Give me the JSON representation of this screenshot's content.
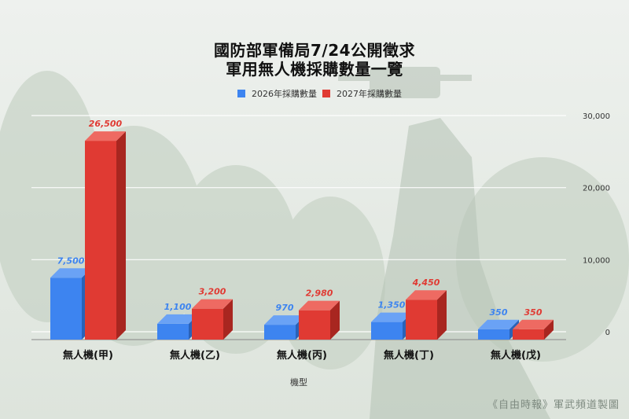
{
  "title_line1": "國防部軍備局7/24公開徵求",
  "title_line2": "軍用無人機採購數量一覽",
  "credit": "《自由時報》軍武頻道製圖",
  "colors": {
    "series1": "#3d84f0",
    "series1_dark": "#2a62b8",
    "series1_top": "#6aa2f5",
    "series2": "#e03a33",
    "series2_dark": "#a82620",
    "series2_top": "#ee6a62",
    "label1": "#3d84f0",
    "label2": "#e03a33"
  },
  "chart_data": {
    "type": "bar",
    "categories": [
      "無人機(甲)",
      "無人機(乙)",
      "無人機(丙)",
      "無人機(丁)",
      "無人機(戊)"
    ],
    "series": [
      {
        "name": "2026年採購數量",
        "values": [
          7500,
          1100,
          970,
          1350,
          350
        ]
      },
      {
        "name": "2027年採購數量",
        "values": [
          26500,
          3200,
          2980,
          4450,
          350
        ]
      }
    ],
    "value_labels": [
      [
        "7,500",
        "1,100",
        "970",
        "1,350",
        "350"
      ],
      [
        "26,500",
        "3,200",
        "2,980",
        "4,450",
        "350"
      ]
    ],
    "xlabel": "機型",
    "ylabel": "",
    "ylim": [
      0,
      30000
    ],
    "yticks": [
      0,
      10000,
      20000,
      30000
    ],
    "ytick_labels": [
      "0",
      "10,000",
      "20,000",
      "30,000"
    ],
    "grid": true,
    "legend": "top-center"
  }
}
